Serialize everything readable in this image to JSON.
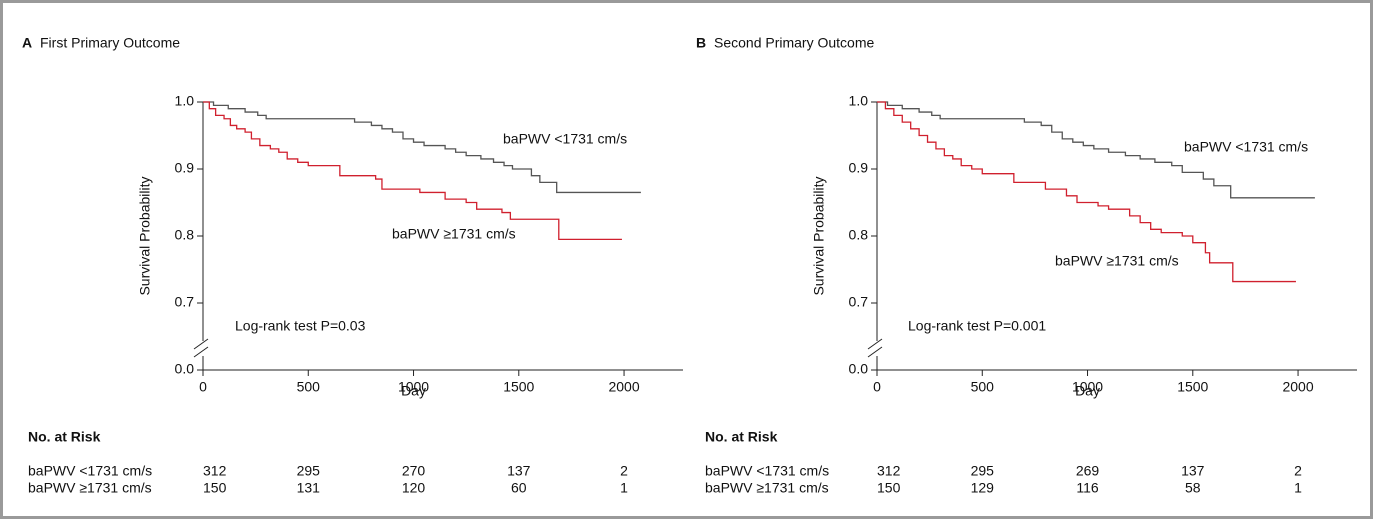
{
  "chart_data": [
    {
      "type": "line",
      "step": "post",
      "panel": "A",
      "title": "First Primary Outcome",
      "x_label": "Day",
      "y_label": "Survival Probability",
      "annotation": "Log-rank test P=0.03",
      "xlim": [
        0,
        2280
      ],
      "xticks": [
        0,
        500,
        1000,
        1500,
        2000
      ],
      "ylim": [
        0,
        1
      ],
      "y_break": [
        0,
        0.6
      ],
      "yticks": [
        {
          "value": 0,
          "label": "0.0"
        },
        0.7,
        0.8,
        0.9,
        {
          "value": 1,
          "label": "1.0"
        }
      ],
      "series": [
        {
          "name": "baPWV <1731 cm/s",
          "color": "#555555",
          "x": [
            0,
            50,
            120,
            200,
            260,
            300,
            720,
            800,
            850,
            900,
            950,
            1000,
            1050,
            1150,
            1200,
            1250,
            1320,
            1380,
            1430,
            1470,
            1560,
            1600,
            1680,
            2080
          ],
          "values": [
            1.0,
            0.995,
            0.99,
            0.985,
            0.98,
            0.975,
            0.97,
            0.965,
            0.96,
            0.955,
            0.945,
            0.94,
            0.935,
            0.93,
            0.925,
            0.92,
            0.915,
            0.91,
            0.905,
            0.9,
            0.89,
            0.88,
            0.865,
            0.865
          ]
        },
        {
          "name": "baPWV ≥1731 cm/s",
          "color": "#d0202e",
          "x": [
            0,
            30,
            60,
            100,
            130,
            160,
            200,
            230,
            270,
            320,
            360,
            400,
            450,
            500,
            650,
            820,
            850,
            1030,
            1150,
            1250,
            1300,
            1420,
            1460,
            1690,
            1990
          ],
          "values": [
            1.0,
            0.99,
            0.98,
            0.975,
            0.965,
            0.96,
            0.955,
            0.945,
            0.935,
            0.93,
            0.925,
            0.915,
            0.91,
            0.905,
            0.89,
            0.885,
            0.87,
            0.865,
            0.855,
            0.85,
            0.84,
            0.835,
            0.825,
            0.795,
            0.795
          ]
        }
      ],
      "risk_table": {
        "title": "No. at Risk",
        "rows": [
          [
            312,
            295,
            270,
            137,
            2
          ],
          [
            150,
            131,
            120,
            60,
            1
          ]
        ]
      }
    },
    {
      "type": "line",
      "step": "post",
      "panel": "B",
      "title": "Second Primary Outcome",
      "x_label": "Day",
      "y_label": "Survival Probability",
      "annotation": "Log-rank test P=0.001",
      "xlim": [
        0,
        2280
      ],
      "xticks": [
        0,
        500,
        1000,
        1500,
        2000
      ],
      "ylim": [
        0,
        1
      ],
      "y_break": [
        0,
        0.6
      ],
      "yticks": [
        {
          "value": 0,
          "label": "0.0"
        },
        0.7,
        0.8,
        0.9,
        {
          "value": 1,
          "label": "1.0"
        }
      ],
      "series": [
        {
          "name": "baPWV <1731 cm/s",
          "color": "#555555",
          "x": [
            0,
            50,
            120,
            200,
            260,
            300,
            700,
            780,
            830,
            880,
            930,
            980,
            1030,
            1100,
            1180,
            1250,
            1320,
            1400,
            1450,
            1550,
            1600,
            1680,
            2080
          ],
          "values": [
            1.0,
            0.995,
            0.99,
            0.985,
            0.98,
            0.975,
            0.97,
            0.965,
            0.955,
            0.945,
            0.94,
            0.935,
            0.93,
            0.925,
            0.92,
            0.915,
            0.91,
            0.905,
            0.895,
            0.885,
            0.875,
            0.857,
            0.857
          ]
        },
        {
          "name": "baPWV ≥1731 cm/s",
          "color": "#d0202e",
          "x": [
            0,
            40,
            80,
            120,
            160,
            200,
            240,
            280,
            320,
            360,
            400,
            450,
            500,
            650,
            800,
            900,
            950,
            1050,
            1100,
            1200,
            1250,
            1300,
            1350,
            1450,
            1500,
            1560,
            1580,
            1690,
            1990
          ],
          "values": [
            1.0,
            0.99,
            0.98,
            0.97,
            0.96,
            0.95,
            0.94,
            0.93,
            0.92,
            0.915,
            0.905,
            0.9,
            0.893,
            0.88,
            0.87,
            0.86,
            0.85,
            0.845,
            0.84,
            0.83,
            0.82,
            0.81,
            0.805,
            0.8,
            0.79,
            0.775,
            0.76,
            0.732,
            0.732
          ]
        }
      ],
      "risk_table": {
        "title": "No. at Risk",
        "rows": [
          [
            312,
            295,
            269,
            137,
            2
          ],
          [
            150,
            129,
            116,
            58,
            1
          ]
        ]
      }
    }
  ]
}
